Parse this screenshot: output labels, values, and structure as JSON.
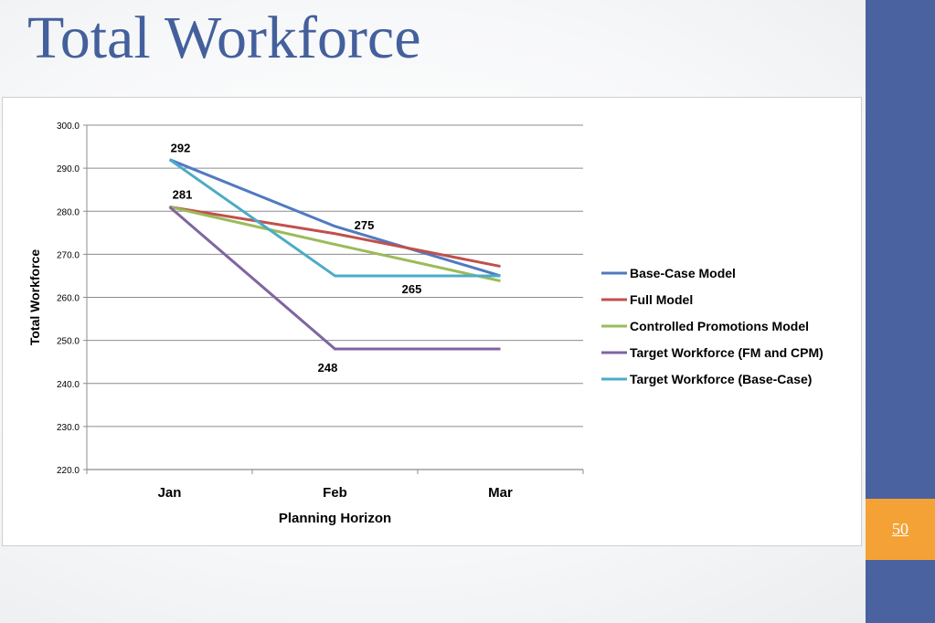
{
  "slide": {
    "title": "Total Workforce",
    "page_number": "50",
    "colors": {
      "title": "#44609c",
      "sidebar": "#4a62a0",
      "page_box": "#f4a236"
    }
  },
  "chart_data": {
    "type": "line",
    "title": "",
    "xlabel": "Planning Horizon",
    "ylabel": "Total Workforce",
    "categories": [
      "Jan",
      "Feb",
      "Mar"
    ],
    "ylim": [
      220,
      300
    ],
    "yticks": [
      "220.0",
      "230.0",
      "240.0",
      "250.0",
      "260.0",
      "270.0",
      "280.0",
      "290.0",
      "300.0"
    ],
    "grid": "horizontal",
    "legend": "right",
    "series": [
      {
        "name": "Base-Case Model",
        "color": "#4f7ac0",
        "values": [
          292,
          276.5,
          265
        ]
      },
      {
        "name": "Full Model",
        "color": "#c0504d",
        "values": [
          281,
          274.8,
          267.2
        ]
      },
      {
        "name": "Controlled Promotions Model",
        "color": "#9bbb59",
        "values": [
          281,
          272.3,
          263.8
        ]
      },
      {
        "name": "Target Workforce (FM and CPM)",
        "color": "#8064a2",
        "values": [
          281,
          248,
          248
        ]
      },
      {
        "name": "Target Workforce (Base-Case)",
        "color": "#4bacc6",
        "values": [
          292,
          265,
          265
        ]
      }
    ],
    "annotations": [
      {
        "text": "292",
        "category": "Jan",
        "value": 292
      },
      {
        "text": "281",
        "category": "Jan",
        "value": 281
      },
      {
        "text": "275",
        "category": "Feb",
        "value": 275
      },
      {
        "text": "265",
        "category": "Feb",
        "value": 265
      },
      {
        "text": "248",
        "category": "Feb",
        "value": 248
      }
    ]
  }
}
